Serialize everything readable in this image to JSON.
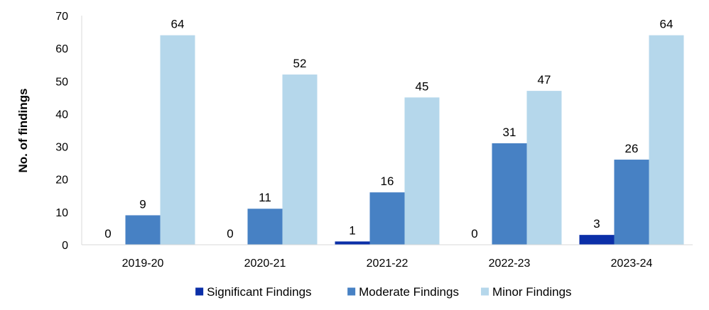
{
  "chart_data": {
    "type": "bar",
    "title": "",
    "xlabel": "",
    "ylabel": "No. of findings",
    "ylim": [
      0,
      70
    ],
    "yticks": [
      0,
      10,
      20,
      30,
      40,
      50,
      60,
      70
    ],
    "grid": false,
    "legend_position": "bottom",
    "categories": [
      "2019-20",
      "2020-21",
      "2021-22",
      "2022-23",
      "2023-24"
    ],
    "series": [
      {
        "name": "Significant Findings",
        "color": "#0b2fa8",
        "values": [
          0,
          0,
          1,
          0,
          3
        ]
      },
      {
        "name": "Moderate Findings",
        "color": "#4781c4",
        "values": [
          9,
          11,
          16,
          31,
          26
        ]
      },
      {
        "name": "Minor Findings",
        "color": "#b5d7eb",
        "values": [
          64,
          52,
          45,
          47,
          64
        ]
      }
    ]
  }
}
